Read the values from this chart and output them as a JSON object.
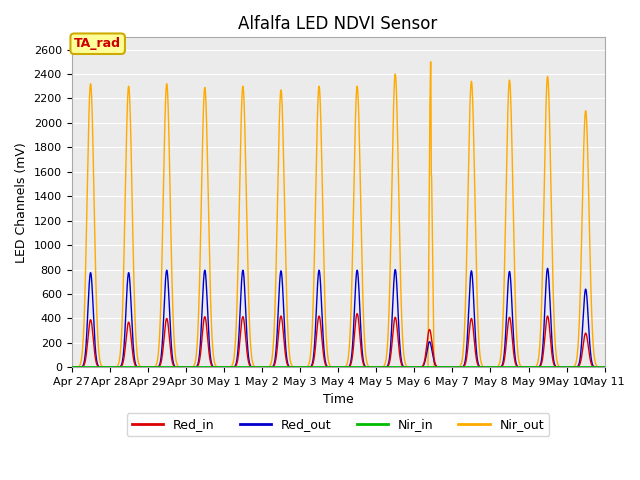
{
  "title": "Alfalfa LED NDVI Sensor",
  "xlabel": "Time",
  "ylabel": "LED Channels (mV)",
  "ylim": [
    0,
    2700
  ],
  "yticks": [
    0,
    200,
    400,
    600,
    800,
    1000,
    1200,
    1400,
    1600,
    1800,
    2000,
    2200,
    2400,
    2600
  ],
  "xtick_labels": [
    "Apr 27",
    "Apr 28",
    "Apr 29",
    "Apr 30",
    "May 1",
    "May 2",
    "May 3",
    "May 4",
    "May 5",
    "May 6",
    "May 7",
    "May 8",
    "May 9",
    "May 10",
    "May 11"
  ],
  "colors": {
    "Red_in": "#dd0000",
    "Red_out": "#0000cc",
    "Nir_in": "#00bb00",
    "Nir_out": "#ffaa00"
  },
  "background_color": "#ebebeb",
  "grid_color": "#ffffff",
  "annotation_text": "TA_rad",
  "annotation_bg": "#ffff99",
  "annotation_border": "#ccaa00",
  "annotation_text_color": "#cc0000",
  "peak_sigma": 0.07,
  "nir_sigma": 0.09,
  "peak_days": [
    0.5,
    1.5,
    2.5,
    3.5,
    4.5,
    5.5,
    6.5,
    7.5,
    8.5,
    9.4,
    10.5,
    11.5,
    12.5,
    13.5
  ],
  "red_in_peaks": [
    390,
    370,
    400,
    415,
    415,
    420,
    420,
    440,
    410,
    310,
    400,
    410,
    420,
    280
  ],
  "red_out_peaks": [
    775,
    775,
    795,
    795,
    795,
    790,
    795,
    795,
    800,
    210,
    790,
    785,
    810,
    640
  ],
  "nir_out_peaks": [
    2320,
    2300,
    2320,
    2290,
    2300,
    2270,
    2300,
    2300,
    2400,
    0,
    2340,
    2350,
    2380,
    2100
  ],
  "nir_special_segments": [
    {
      "x": [
        9.38,
        9.42,
        9.42,
        9.38
      ],
      "y": [
        0,
        0,
        2200,
        2200
      ]
    },
    {
      "x": [
        9.415,
        9.43
      ],
      "y": [
        2200,
        2500
      ]
    },
    {
      "x": [
        9.43,
        9.445
      ],
      "y": [
        2500,
        2500
      ]
    },
    {
      "x": [
        9.445,
        9.46
      ],
      "y": [
        2500,
        1570
      ]
    },
    {
      "x": [
        9.46,
        9.475
      ],
      "y": [
        1570,
        1570
      ]
    },
    {
      "x": [
        9.475,
        9.52
      ],
      "y": [
        1570,
        0
      ]
    }
  ],
  "figsize": [
    6.4,
    4.8
  ],
  "dpi": 100
}
